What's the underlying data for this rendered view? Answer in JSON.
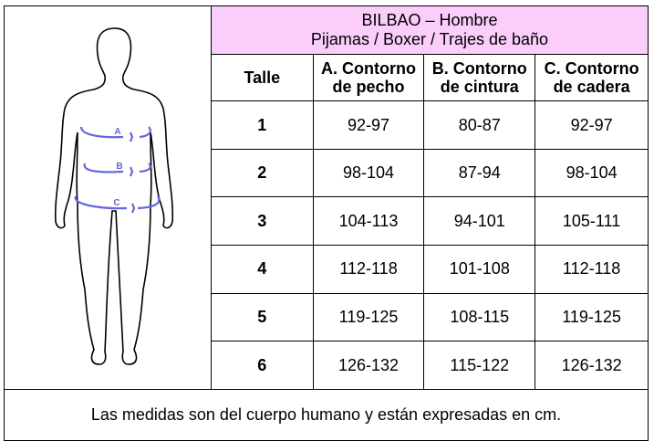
{
  "title": {
    "line1": "BILBAO – Hombre",
    "line2": "Pijamas / Boxer / Trajes de baño"
  },
  "header_color": "#fbcdfb",
  "figure": {
    "labels": [
      "A",
      "B",
      "C"
    ],
    "marker_color": "#6666dd"
  },
  "columns": [
    {
      "label": "Talle"
    },
    {
      "line1": "A. Contorno",
      "line2": "de pecho"
    },
    {
      "line1": "B. Contorno",
      "line2": "de cintura"
    },
    {
      "line1": "C. Contorno",
      "line2": "de cadera"
    }
  ],
  "rows": [
    [
      "1",
      "92-97",
      "80-87",
      "92-97"
    ],
    [
      "2",
      "98-104",
      "87-94",
      "98-104"
    ],
    [
      "3",
      "104-113",
      "94-101",
      "105-111"
    ],
    [
      "4",
      "112-118",
      "101-108",
      "112-118"
    ],
    [
      "5",
      "119-125",
      "108-115",
      "119-125"
    ],
    [
      "6",
      "126-132",
      "115-122",
      "126-132"
    ]
  ],
  "footer": "Las medidas son del cuerpo humano y están expresadas en cm."
}
